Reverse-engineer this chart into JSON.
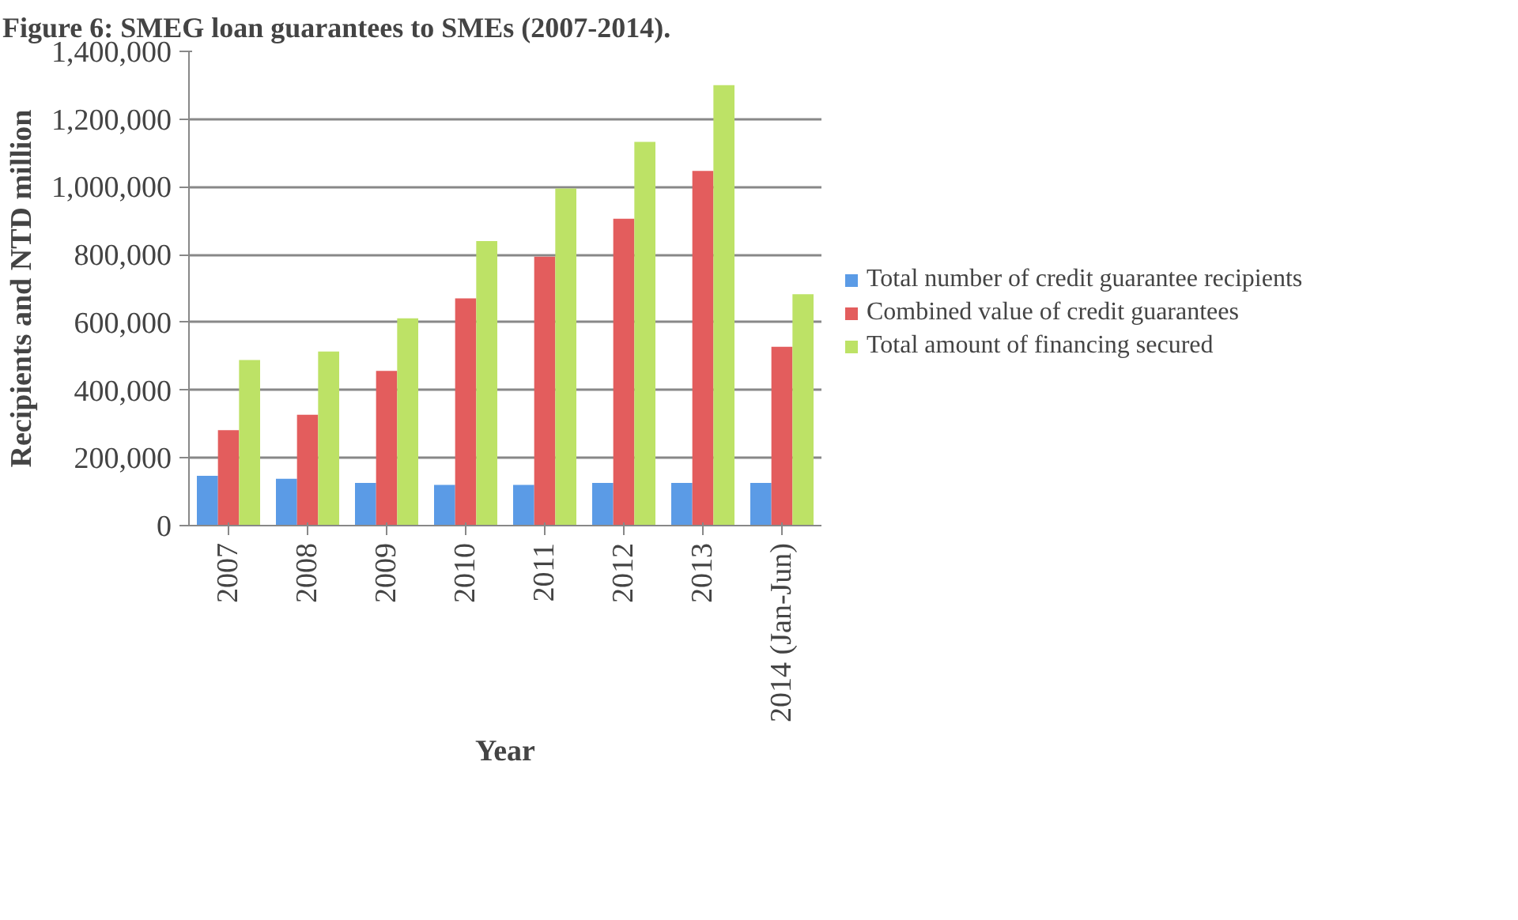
{
  "chart_data": {
    "type": "bar",
    "title": "Figure 6: SMEG loan guarantees to SMEs (2007-2014).",
    "xlabel": "Year",
    "ylabel": "Recipients and NTD million",
    "categories": [
      "2007",
      "2008",
      "2009",
      "2010",
      "2011",
      "2012",
      "2013",
      "2014 (Jan-Jun)"
    ],
    "series": [
      {
        "name": "Total number of credit guarantee recipients",
        "color": "#5b9be6",
        "values": [
          147000,
          138000,
          126000,
          120000,
          120000,
          126000,
          126000,
          126000
        ]
      },
      {
        "name": "Combined value of credit guarantees",
        "color": "#e35d5d",
        "values": [
          282000,
          327000,
          457000,
          671000,
          794000,
          906000,
          1047000,
          528000
        ]
      },
      {
        "name": "Total amount of financing secured",
        "color": "#bde266",
        "values": [
          489000,
          514000,
          612000,
          840000,
          995000,
          1133000,
          1300000,
          683000
        ]
      }
    ],
    "ylim": [
      0,
      1400000
    ],
    "yticks": [
      {
        "value": 0,
        "label": "0"
      },
      {
        "value": 200000,
        "label": "200,000"
      },
      {
        "value": 400000,
        "label": "400,000"
      },
      {
        "value": 600000,
        "label": "600,000"
      },
      {
        "value": 800000,
        "label": "800,000"
      },
      {
        "value": 1000000,
        "label": "1,000,000"
      },
      {
        "value": 1200000,
        "label": "1,200,000"
      },
      {
        "value": 1400000,
        "label": "1,400,000"
      }
    ],
    "grid": "y",
    "legend": "right"
  }
}
